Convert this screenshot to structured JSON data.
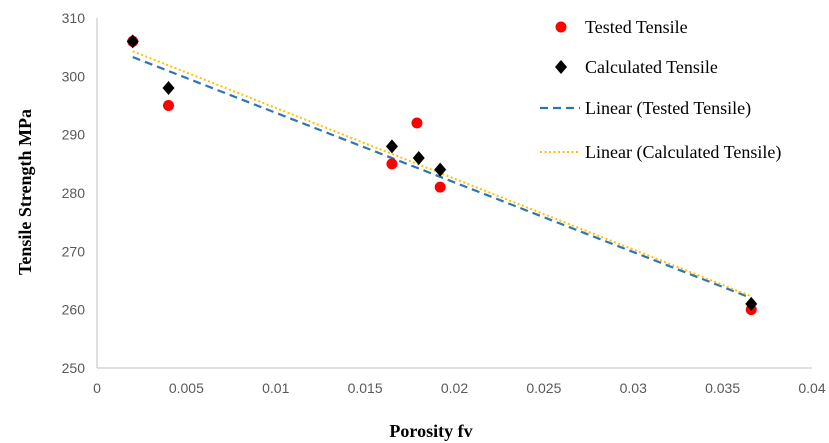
{
  "chart_data": {
    "type": "scatter",
    "title": "",
    "xlabel": "Porosity fv",
    "ylabel": "Tensile Strength MPa",
    "xlim": [
      0,
      0.04
    ],
    "ylim": [
      250,
      310
    ],
    "x_ticks": [
      "0",
      "0.005",
      "0.01",
      "0.015",
      "0.02",
      "0.025",
      "0.03",
      "0.035",
      "0.04"
    ],
    "y_ticks": [
      "250",
      "260",
      "270",
      "280",
      "290",
      "300",
      "310"
    ],
    "grid": false,
    "legend_position": "right",
    "series": [
      {
        "name": "Tested Tensile",
        "marker": "circle",
        "color": "#FF0000",
        "points": [
          [
            0.002,
            306
          ],
          [
            0.004,
            295
          ],
          [
            0.0165,
            285
          ],
          [
            0.0179,
            292
          ],
          [
            0.0192,
            281
          ],
          [
            0.0366,
            260
          ]
        ]
      },
      {
        "name": "Calculated Tensile",
        "marker": "diamond",
        "color": "#000000",
        "points": [
          [
            0.002,
            306
          ],
          [
            0.004,
            298
          ],
          [
            0.0165,
            288
          ],
          [
            0.018,
            286
          ],
          [
            0.0192,
            284
          ],
          [
            0.0366,
            261
          ]
        ]
      }
    ],
    "trendlines": [
      {
        "name": "Linear (Tested Tensile)",
        "style": "dashed",
        "color": "#2E75B6",
        "points": [
          [
            0.002,
            303.3
          ],
          [
            0.0366,
            262
          ]
        ]
      },
      {
        "name": "Linear (Calculated Tensile)",
        "style": "dotted",
        "color": "#FFC000",
        "points": [
          [
            0.002,
            304.3
          ],
          [
            0.0366,
            262.3
          ]
        ]
      }
    ]
  }
}
